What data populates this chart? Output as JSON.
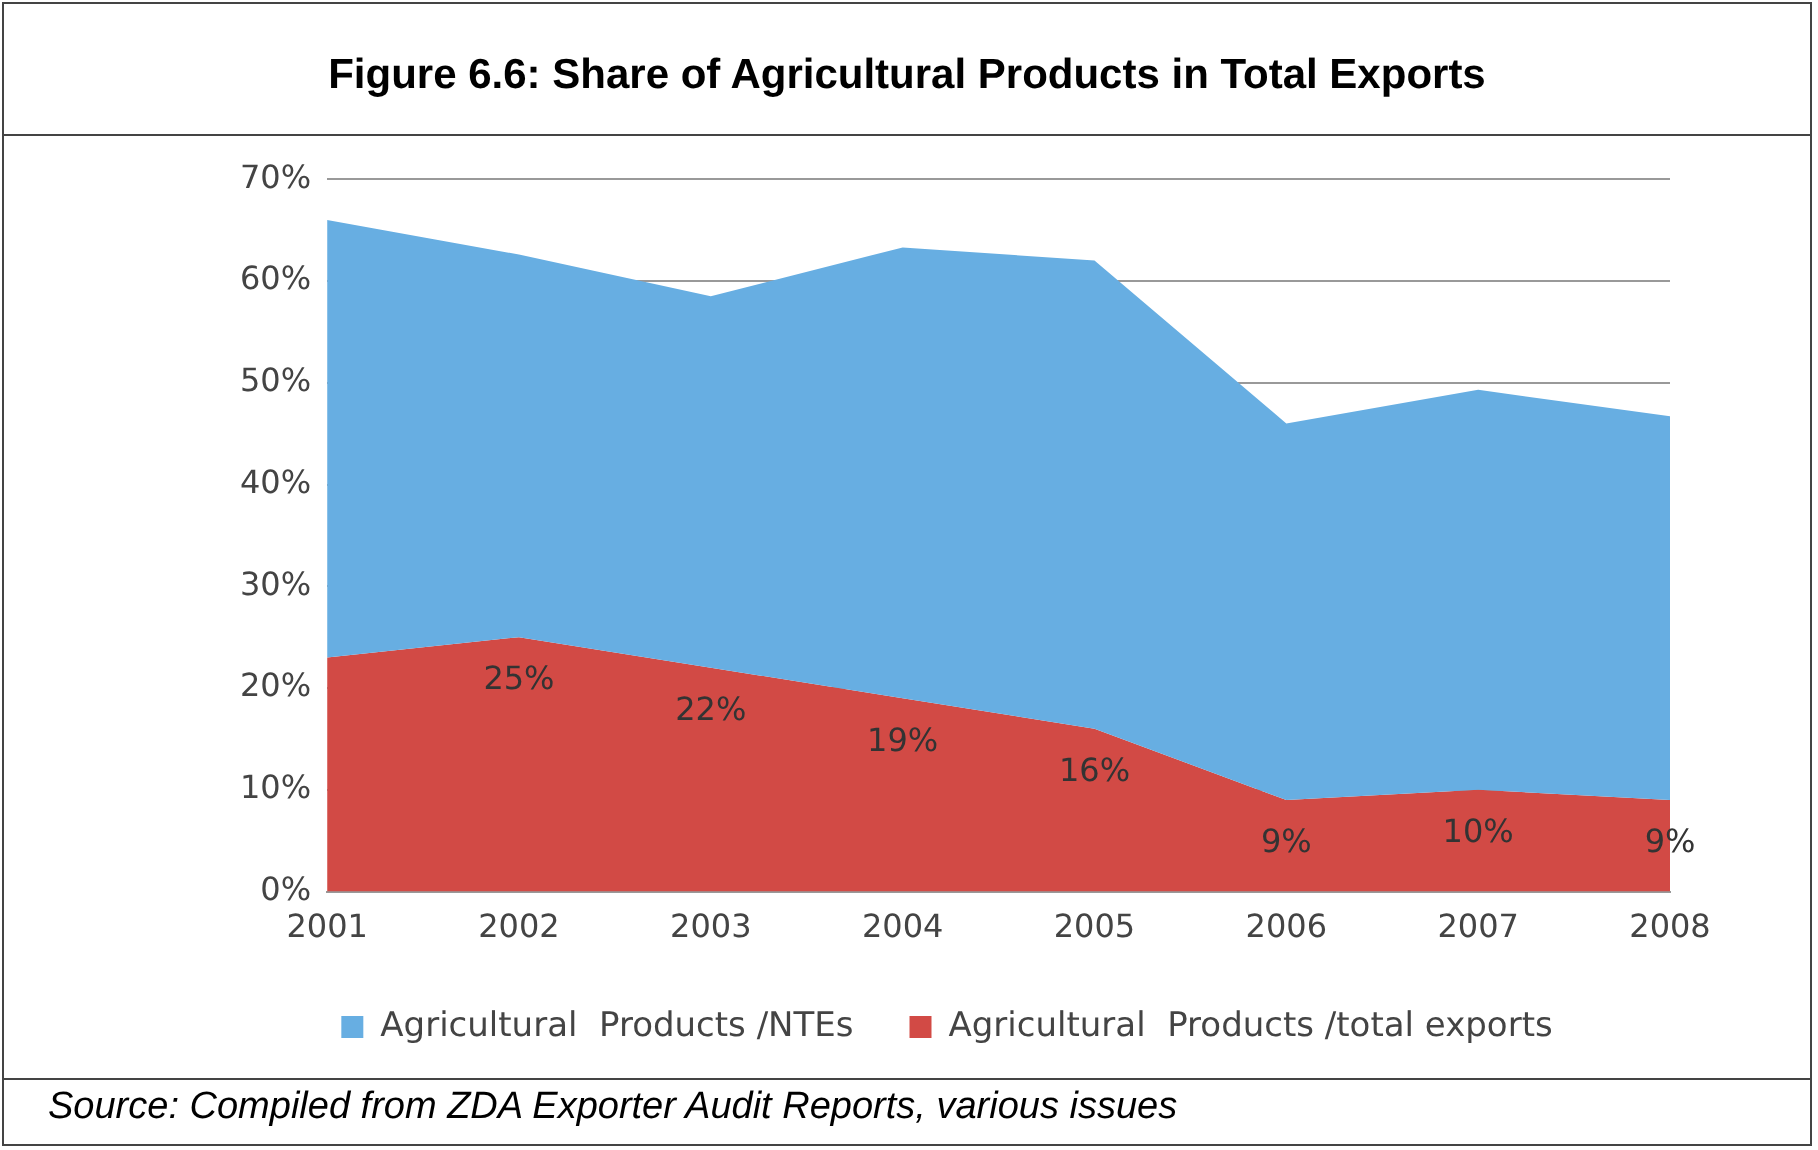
{
  "chart_data": {
    "type": "area",
    "title": "Figure 6.6: Share of Agricultural Products in Total Exports",
    "categories": [
      "2001",
      "2002",
      "2003",
      "2004",
      "2005",
      "2006",
      "2007",
      "2008"
    ],
    "series": [
      {
        "name": "Agricultural  Products /NTEs",
        "color": "#67aee2",
        "values": [
          66,
          62.6,
          58.5,
          63.3,
          62,
          46,
          49.3,
          46.7
        ]
      },
      {
        "name": "Agricultural  Products /total exports",
        "color": "#d24a45",
        "values": [
          23,
          25,
          22,
          19,
          16,
          9,
          10,
          9
        ],
        "value_labels": [
          null,
          "25%",
          "22%",
          "19%",
          "16%",
          "9%",
          "10%",
          "9%"
        ]
      }
    ],
    "ylim": [
      0,
      70
    ],
    "yticks": [
      {
        "value": 0,
        "label": "0%"
      },
      {
        "value": 10,
        "label": "10%"
      },
      {
        "value": 20,
        "label": "20%"
      },
      {
        "value": 30,
        "label": "30%"
      },
      {
        "value": 40,
        "label": "40%"
      },
      {
        "value": 50,
        "label": "50%"
      },
      {
        "value": 60,
        "label": "60%"
      },
      {
        "value": 70,
        "label": "70%"
      }
    ],
    "grid": "y",
    "legend": "bottom",
    "annotations": [
      "Source: Compiled from ZDA Exporter Audit Reports, various issues"
    ]
  }
}
